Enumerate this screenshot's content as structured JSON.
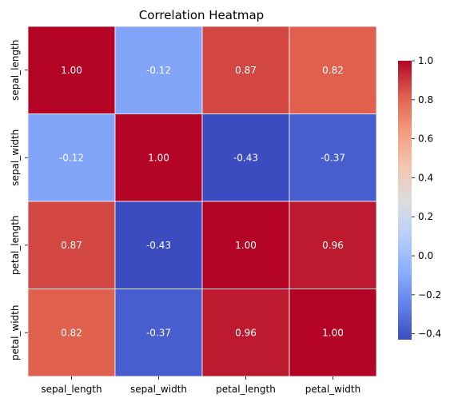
{
  "chart_data": {
    "type": "heatmap",
    "title": "Correlation Heatmap",
    "rows": [
      "sepal_length",
      "sepal_width",
      "petal_length",
      "petal_width"
    ],
    "columns": [
      "sepal_length",
      "sepal_width",
      "petal_length",
      "petal_width"
    ],
    "values": [
      [
        1.0,
        -0.12,
        0.87,
        0.82
      ],
      [
        -0.12,
        1.0,
        -0.43,
        -0.37
      ],
      [
        0.87,
        -0.43,
        1.0,
        0.96
      ],
      [
        0.82,
        -0.37,
        0.96,
        1.0
      ]
    ],
    "cell_labels": [
      [
        "1.00",
        "-0.12",
        "0.87",
        "0.82"
      ],
      [
        "-0.12",
        "1.00",
        "-0.43",
        "-0.37"
      ],
      [
        "0.87",
        "-0.43",
        "1.00",
        "0.96"
      ],
      [
        "0.82",
        "-0.37",
        "0.96",
        "1.00"
      ]
    ],
    "colormap": "coolwarm",
    "colorbar": {
      "range": [
        -0.43,
        1.0
      ],
      "ticks": [
        1.0,
        0.8,
        0.6,
        0.4,
        0.2,
        0.0,
        -0.2,
        -0.4
      ],
      "tick_labels": [
        "1.0",
        "0.8",
        "0.6",
        "0.4",
        "0.2",
        "0.0",
        "−0.2",
        "−0.4"
      ]
    },
    "cell_divider_color": "#ffffff"
  }
}
